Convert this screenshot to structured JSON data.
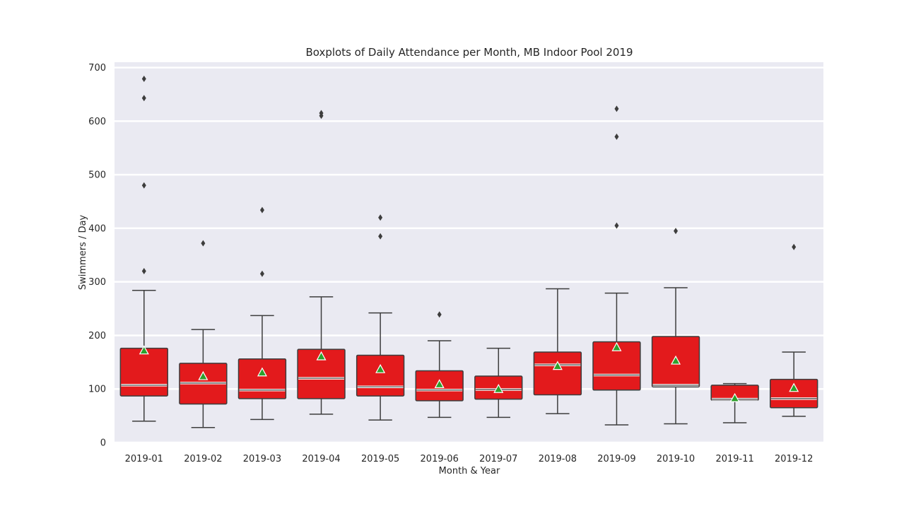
{
  "chart_data": {
    "type": "boxplot",
    "title": "Boxplots of Daily Attendance per Month, MB Indoor Pool 2019",
    "xlabel": "Month & Year",
    "ylabel": "Swimmers / Day",
    "ylim": [
      0,
      710
    ],
    "yticks": [
      "0",
      "100",
      "200",
      "300",
      "400",
      "500",
      "600",
      "700"
    ],
    "grid": true,
    "box_color": "#e31a1c",
    "mean_marker_color": "#2ca02c",
    "categories": [
      "2019-01",
      "2019-02",
      "2019-03",
      "2019-04",
      "2019-05",
      "2019-06",
      "2019-07",
      "2019-08",
      "2019-09",
      "2019-10",
      "2019-11",
      "2019-12"
    ],
    "boxes": [
      {
        "whisker_low": 40,
        "q1": 87,
        "median": 107,
        "q3": 176,
        "whisker_high": 284,
        "mean": 172,
        "outliers": [
          320,
          480,
          643,
          679
        ]
      },
      {
        "whisker_low": 28,
        "q1": 72,
        "median": 111,
        "q3": 148,
        "whisker_high": 211,
        "mean": 124,
        "outliers": [
          372
        ]
      },
      {
        "whisker_low": 43,
        "q1": 82,
        "median": 98,
        "q3": 156,
        "whisker_high": 237,
        "mean": 131,
        "outliers": [
          315,
          434
        ]
      },
      {
        "whisker_low": 53,
        "q1": 82,
        "median": 120,
        "q3": 174,
        "whisker_high": 272,
        "mean": 161,
        "outliers": [
          610,
          615
        ]
      },
      {
        "whisker_low": 42,
        "q1": 87,
        "median": 104,
        "q3": 163,
        "whisker_high": 242,
        "mean": 137,
        "outliers": [
          385,
          420
        ]
      },
      {
        "whisker_low": 47,
        "q1": 78,
        "median": 98,
        "q3": 134,
        "whisker_high": 190,
        "mean": 109,
        "outliers": [
          239
        ]
      },
      {
        "whisker_low": 47,
        "q1": 81,
        "median": 99,
        "q3": 124,
        "whisker_high": 176,
        "mean": 100,
        "outliers": []
      },
      {
        "whisker_low": 54,
        "q1": 89,
        "median": 145,
        "q3": 169,
        "whisker_high": 287,
        "mean": 143,
        "outliers": []
      },
      {
        "whisker_low": 33,
        "q1": 98,
        "median": 126,
        "q3": 188,
        "whisker_high": 279,
        "mean": 178,
        "outliers": [
          405,
          571,
          623
        ]
      },
      {
        "whisker_low": 35,
        "q1": 104,
        "median": 107,
        "q3": 198,
        "whisker_high": 289,
        "mean": 153,
        "outliers": [
          395
        ]
      },
      {
        "whisker_low": 37,
        "q1": 79,
        "median": 81,
        "q3": 107,
        "whisker_high": 110,
        "mean": 83,
        "outliers": []
      },
      {
        "whisker_low": 49,
        "q1": 65,
        "median": 82,
        "q3": 118,
        "whisker_high": 169,
        "mean": 102,
        "outliers": [
          365
        ]
      }
    ]
  }
}
